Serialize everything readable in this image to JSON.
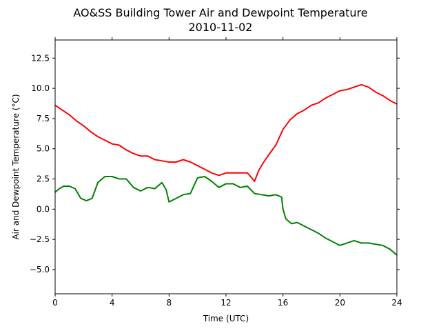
{
  "chart_data": {
    "type": "line",
    "title": "AO&SS Building Tower Air and Dewpoint Temperature",
    "subtitle": "2010-11-02",
    "xlabel": "Time (UTC)",
    "ylabel": "Air and Dewpoint Temperature (°C)",
    "xlim": [
      0,
      24
    ],
    "ylim": [
      -7,
      14
    ],
    "xticks": [
      0,
      4,
      8,
      12,
      16,
      20,
      24
    ],
    "yticks": [
      -5.0,
      -2.5,
      0.0,
      2.5,
      5.0,
      7.5,
      10.0,
      12.5
    ],
    "ytick_labels": [
      "−5.0",
      "−2.5",
      "0.0",
      "2.5",
      "5.0",
      "7.5",
      "10.0",
      "12.5"
    ],
    "grid": false,
    "series": [
      {
        "color": "#ff0000",
        "x": [
          0,
          0.5,
          1,
          1.5,
          2,
          2.5,
          3,
          3.5,
          4,
          4.5,
          5,
          5.5,
          6,
          6.5,
          7,
          7.5,
          8,
          8.5,
          9,
          9.5,
          10,
          10.5,
          11,
          11.5,
          12,
          12.5,
          13,
          13.5,
          13.8,
          14,
          14.3,
          14.6,
          15,
          15.5,
          16,
          16.5,
          17,
          17.5,
          18,
          18.5,
          19,
          19.5,
          20,
          20.5,
          21,
          21.5,
          22,
          22.5,
          23,
          23.5,
          24
        ],
        "y": [
          8.6,
          8.2,
          7.8,
          7.3,
          6.9,
          6.4,
          6.0,
          5.7,
          5.4,
          5.3,
          4.9,
          4.6,
          4.4,
          4.4,
          4.1,
          4.0,
          3.9,
          3.9,
          4.1,
          3.9,
          3.6,
          3.3,
          3.0,
          2.8,
          3.0,
          3.0,
          3.0,
          3.0,
          2.6,
          2.3,
          3.2,
          3.8,
          4.5,
          5.3,
          6.6,
          7.4,
          7.9,
          8.2,
          8.6,
          8.8,
          9.2,
          9.5,
          9.8,
          9.9,
          10.1,
          10.3,
          10.1,
          9.7,
          9.4,
          9.0,
          8.7
        ]
      },
      {
        "color": "#008000",
        "x": [
          0,
          0.3,
          0.6,
          1,
          1.4,
          1.8,
          2.2,
          2.6,
          3.0,
          3.5,
          4.0,
          4.5,
          5.0,
          5.5,
          6.0,
          6.5,
          7.0,
          7.5,
          7.8,
          8.0,
          8.5,
          9.0,
          9.5,
          10.0,
          10.5,
          11.0,
          11.5,
          12.0,
          12.5,
          13.0,
          13.5,
          14.0,
          14.5,
          15.0,
          15.5,
          15.9,
          16.0,
          16.2,
          16.6,
          17.0,
          17.5,
          18.0,
          18.5,
          19.0,
          19.5,
          20.0,
          20.5,
          21.0,
          21.5,
          22.0,
          22.5,
          23.0,
          23.5,
          24.0
        ],
        "y": [
          1.4,
          1.7,
          1.9,
          1.9,
          1.7,
          0.9,
          0.7,
          0.9,
          2.2,
          2.7,
          2.7,
          2.5,
          2.5,
          1.8,
          1.5,
          1.8,
          1.7,
          2.2,
          1.6,
          0.6,
          0.9,
          1.2,
          1.3,
          2.6,
          2.7,
          2.3,
          1.8,
          2.1,
          2.1,
          1.8,
          1.9,
          1.3,
          1.2,
          1.1,
          1.2,
          1.0,
          0.0,
          -0.8,
          -1.2,
          -1.1,
          -1.4,
          -1.7,
          -2.0,
          -2.4,
          -2.7,
          -3.0,
          -2.8,
          -2.6,
          -2.8,
          -2.8,
          -2.9,
          -3.0,
          -3.3,
          -3.8
        ]
      }
    ]
  }
}
